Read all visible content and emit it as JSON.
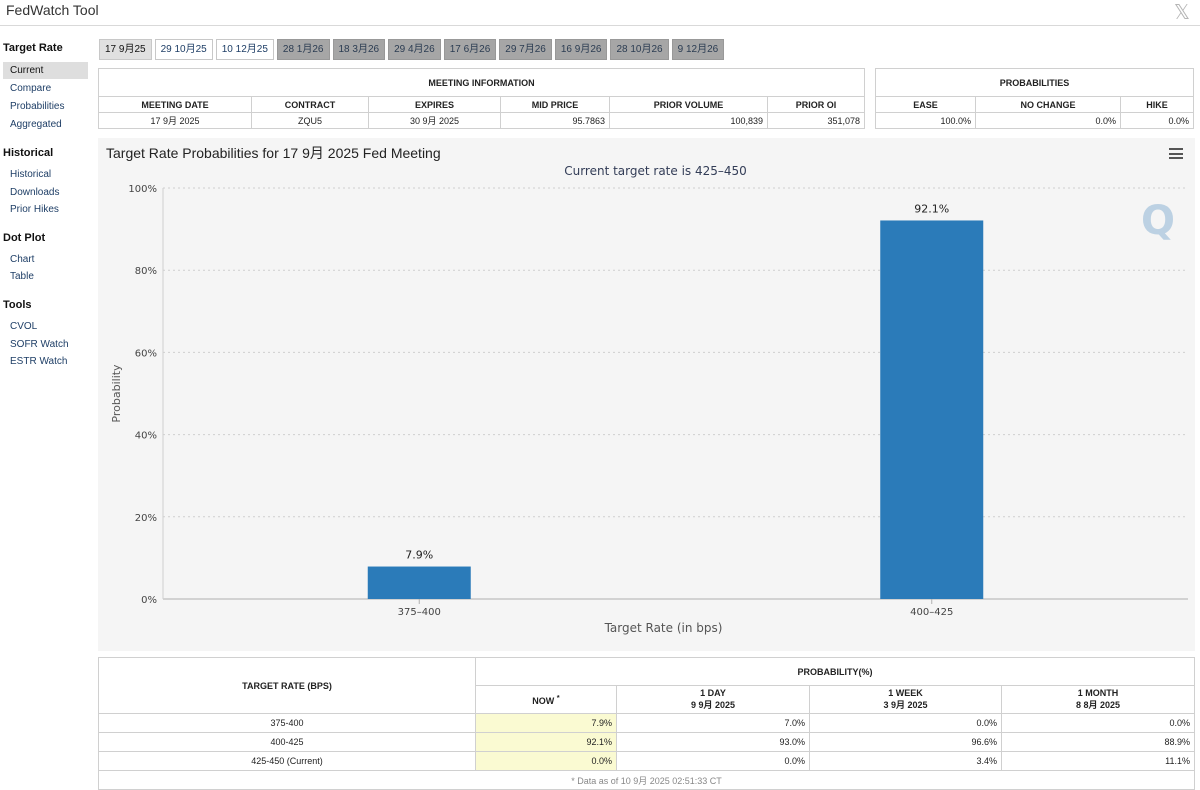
{
  "app": {
    "title": "FedWatch Tool"
  },
  "sidebar": {
    "sections": [
      {
        "heading": "Target Rate",
        "items": [
          "Current",
          "Compare",
          "Probabilities",
          "Aggregated"
        ]
      },
      {
        "heading": "Historical",
        "items": [
          "Historical",
          "Downloads",
          "Prior Hikes"
        ]
      },
      {
        "heading": "Dot Plot",
        "items": [
          "Chart",
          "Table"
        ]
      },
      {
        "heading": "Tools",
        "items": [
          "CVOL",
          "SOFR Watch",
          "ESTR Watch"
        ]
      }
    ]
  },
  "date_tabs": [
    "17 9月25",
    "29 10月25",
    "10 12月25",
    "28 1月26",
    "18 3月26",
    "29 4月26",
    "17 6月26",
    "29 7月26",
    "16 9月26",
    "28 10月26",
    "9 12月26"
  ],
  "meeting_info": {
    "heading": "MEETING INFORMATION",
    "columns": [
      "MEETING DATE",
      "CONTRACT",
      "EXPIRES",
      "MID PRICE",
      "PRIOR VOLUME",
      "PRIOR OI"
    ],
    "values": [
      "17 9月 2025",
      "ZQU5",
      "30 9月 2025",
      "95.7863",
      "100,839",
      "351,078"
    ]
  },
  "probabilities_box": {
    "heading": "PROBABILITIES",
    "columns": [
      "EASE",
      "NO CHANGE",
      "HIKE"
    ],
    "values": [
      "100.0%",
      "0.0%",
      "0.0%"
    ]
  },
  "chart": {
    "title": "Target Rate Probabilities for 17 9月 2025 Fed Meeting",
    "logo_text": "Q"
  },
  "chart_data": {
    "type": "bar",
    "subtitle": "Current target rate is 425–450",
    "categories": [
      "375–400",
      "400–425"
    ],
    "values": [
      7.9,
      92.1
    ],
    "data_labels": [
      "7.9%",
      "92.1%"
    ],
    "xlabel": "Target Rate (in bps)",
    "ylabel": "Probability",
    "ylim": [
      0,
      100
    ],
    "yticks": [
      "0%",
      "20%",
      "40%",
      "60%",
      "80%",
      "100%"
    ],
    "bar_color": "#2b7bb9",
    "grid": true
  },
  "prob_table": {
    "rate_header": "TARGET RATE (BPS)",
    "prob_header": "PROBABILITY(%)",
    "now_label": "NOW",
    "now_mark": "*",
    "periods": [
      {
        "label": "1 DAY",
        "date": "9 9月 2025"
      },
      {
        "label": "1 WEEK",
        "date": "3 9月 2025"
      },
      {
        "label": "1 MONTH",
        "date": "8 8月 2025"
      }
    ],
    "rows": [
      {
        "rate": "375-400",
        "now": "7.9%",
        "day": "7.0%",
        "week": "0.0%",
        "month": "0.0%"
      },
      {
        "rate": "400-425",
        "now": "92.1%",
        "day": "93.0%",
        "week": "96.6%",
        "month": "88.9%"
      },
      {
        "rate": "425-450 (Current)",
        "now": "0.0%",
        "day": "0.0%",
        "week": "3.4%",
        "month": "11.1%"
      }
    ],
    "footnote": "* Data as of 10 9月 2025 02:51:33 CT"
  }
}
